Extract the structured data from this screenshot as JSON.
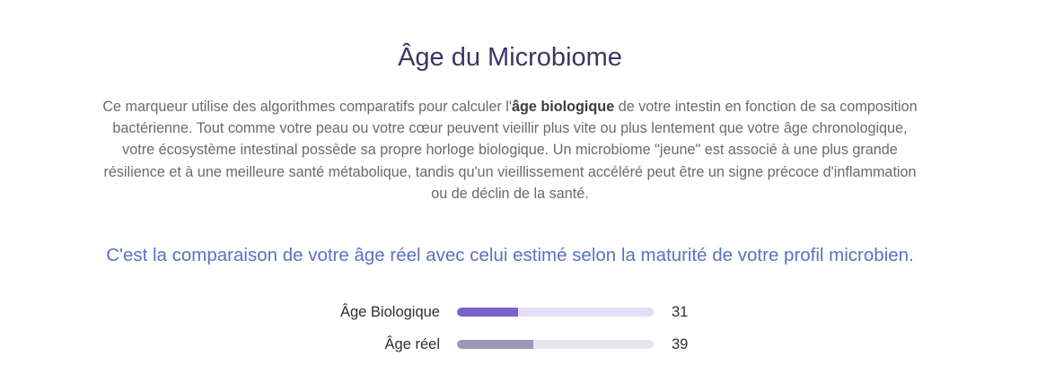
{
  "title": "Âge du Microbiome",
  "description": {
    "part1": "Ce marqueur utilise des algorithmes comparatifs pour calculer l'",
    "bold": "âge biologique",
    "part2": " de votre intestin en fonction de sa composition bactérienne. Tout comme votre peau ou votre cœur peuvent vieillir plus vite ou plus lentement que votre âge chronologique, votre écosystème intestinal possède sa propre horloge biologique. Un microbiome \"jeune\" est associé à une plus grande résilience et à une meilleure santé métabolique, tandis qu'un vieillissement accéléré peut être un signe précoce d'inflammation ou de déclin de la santé."
  },
  "subtitle": "C'est la comparaison de votre âge réel avec celui estimé selon la maturité de votre profil microbien.",
  "comparison": {
    "scale_max": 100,
    "rows": [
      {
        "label": "Âge Biologique",
        "value": "31",
        "fill_fraction": 0.31,
        "fill_color": "#7b62cc",
        "track_color": "#e3ddf5"
      },
      {
        "label": "Âge réel",
        "value": "39",
        "fill_fraction": 0.39,
        "fill_color": "#9b98b4",
        "track_color": "#e6e5ee"
      }
    ]
  }
}
